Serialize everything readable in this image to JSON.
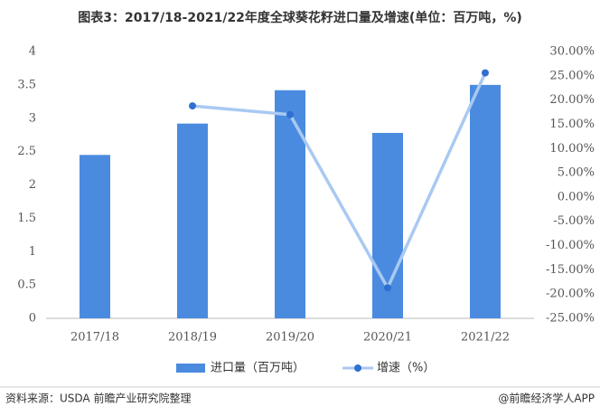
{
  "chart_data": {
    "type": "bar-line",
    "title": "图表3：2017/18-2021/22年度全球葵花籽进口量及增速(单位：百万吨，%)",
    "categories": [
      "2017/18",
      "2018/19",
      "2019/20",
      "2020/21",
      "2021/22"
    ],
    "series": [
      {
        "name": "进口量（百万吨）",
        "type": "bar",
        "color": "#4a8be0",
        "values": [
          2.45,
          2.92,
          3.42,
          2.78,
          3.5
        ]
      },
      {
        "name": "增速（%）",
        "type": "line",
        "axis": "y2",
        "color": "#a9c9f2",
        "marker_color": "#2f6fd0",
        "values": [
          null,
          18.8,
          17.0,
          -18.7,
          25.6
        ]
      }
    ],
    "ylim": [
      0,
      4
    ],
    "yticks": [
      0,
      0.5,
      1,
      1.5,
      2,
      2.5,
      3,
      3.5,
      4
    ],
    "y2lim": [
      -25,
      30
    ],
    "y2ticks": [
      {
        "value": -25,
        "label": "-25.00%"
      },
      {
        "value": -20,
        "label": "-20.00%"
      },
      {
        "value": -15,
        "label": "-15.00%"
      },
      {
        "value": -10,
        "label": "-10.00%"
      },
      {
        "value": -5,
        "label": "-5.00%"
      },
      {
        "value": 0,
        "label": "0.00%"
      },
      {
        "value": 5,
        "label": "5.00%"
      },
      {
        "value": 10,
        "label": "10.00%"
      },
      {
        "value": 15,
        "label": "15.00%"
      },
      {
        "value": 20,
        "label": "20.00%"
      },
      {
        "value": 25,
        "label": "25.00%"
      },
      {
        "value": 30,
        "label": "30.00%"
      }
    ],
    "grid": false,
    "legend": "bottom",
    "source": "资料来源：USDA 前瞻产业研究院整理",
    "credit": "@前瞻经济学人APP"
  }
}
